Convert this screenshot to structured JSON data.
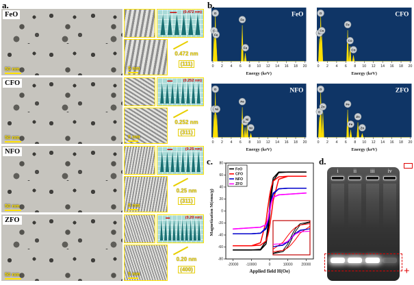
{
  "labels": {
    "a": "a.",
    "b": "b.",
    "c": "c.",
    "d": "d."
  },
  "colors": {
    "scalebar_yellow": "#ffe100",
    "annotation_yellow": "#e8cf00",
    "profile_bg": "#a9dbd8",
    "profile_peak": "#196f72",
    "profile_label_red": "#cc0000",
    "edx_bg": "#0f3566",
    "edx_peak": "#ffe000",
    "gel_marker_red": "#e00000"
  },
  "panel_a": {
    "rows": [
      {
        "name": "FeO",
        "tem_scale": "50 nm",
        "hrtem_scale": "5 nm",
        "spacing": "0.472 nm",
        "plane": "(111)",
        "profile_label": "(0.472 nm)",
        "profile_peaks": 6
      },
      {
        "name": "CFO",
        "tem_scale": "50 nm",
        "hrtem_scale": "5 nm",
        "spacing": "0.252 nm",
        "plane": "(311)",
        "profile_label": "(0.252 nm)",
        "profile_peaks": 8
      },
      {
        "name": "NFO",
        "tem_scale": "50 nm",
        "hrtem_scale": "5 nm",
        "spacing": "0.25 nm",
        "plane": "(311)",
        "profile_label": "(0.25 nm)",
        "profile_peaks": 8
      },
      {
        "name": "ZFO",
        "tem_scale": "50 nm",
        "hrtem_scale": "5 nm",
        "spacing": "0.20 nm",
        "plane": "(400)",
        "profile_label": "(0.20 nm)",
        "profile_peaks": 10
      }
    ]
  },
  "panel_b": {
    "xlabel": "Energy (keV)",
    "xticks": [
      0,
      2,
      4,
      6,
      8,
      10,
      12,
      14,
      16,
      18,
      20
    ],
    "spectra": [
      {
        "name": "FeO",
        "peaks": [
          {
            "e": 0.27,
            "h": 0.5,
            "el": "C"
          },
          {
            "e": 0.53,
            "h": 0.97,
            "el": "O"
          },
          {
            "e": 0.71,
            "h": 0.42,
            "el": "Fe"
          },
          {
            "e": 6.4,
            "h": 0.72,
            "el": "Fe"
          },
          {
            "e": 7.06,
            "h": 0.16,
            "el": "Fe"
          }
        ]
      },
      {
        "name": "CFO",
        "peaks": [
          {
            "e": 0.27,
            "h": 0.45,
            "el": "C"
          },
          {
            "e": 0.53,
            "h": 0.95,
            "el": "O"
          },
          {
            "e": 0.78,
            "h": 0.5,
            "el": "Co"
          },
          {
            "e": 6.4,
            "h": 0.62,
            "el": "Fe"
          },
          {
            "e": 6.93,
            "h": 0.3,
            "el": "Co"
          },
          {
            "e": 7.65,
            "h": 0.12,
            "el": "Co"
          }
        ]
      },
      {
        "name": "NFO",
        "peaks": [
          {
            "e": 0.27,
            "h": 0.45,
            "el": "C"
          },
          {
            "e": 0.53,
            "h": 0.95,
            "el": "O"
          },
          {
            "e": 0.85,
            "h": 0.45,
            "el": "Ni"
          },
          {
            "e": 6.4,
            "h": 0.6,
            "el": "Fe"
          },
          {
            "e": 7.0,
            "h": 0.2,
            "el": "Fe"
          },
          {
            "e": 7.47,
            "h": 0.25,
            "el": "Ni"
          },
          {
            "e": 8.26,
            "h": 0.08,
            "el": "Ni"
          }
        ]
      },
      {
        "name": "ZFO",
        "peaks": [
          {
            "e": 0.27,
            "h": 0.4,
            "el": "C"
          },
          {
            "e": 0.53,
            "h": 0.95,
            "el": "O"
          },
          {
            "e": 1.01,
            "h": 0.5,
            "el": "Zn"
          },
          {
            "e": 6.4,
            "h": 0.55,
            "el": "Fe"
          },
          {
            "e": 7.06,
            "h": 0.15,
            "el": "Fe"
          },
          {
            "e": 8.63,
            "h": 0.3,
            "el": "Zn"
          },
          {
            "e": 9.57,
            "h": 0.08,
            "el": "Zn"
          }
        ]
      }
    ]
  },
  "chart_data": {
    "type": "line",
    "title": "",
    "xlabel": "Applied field H(Oe)",
    "ylabel": "Magnetization M(emu/g)",
    "xlim": [
      -24000,
      24000
    ],
    "ylim": [
      -80,
      80
    ],
    "xticks": [
      -20000,
      -10000,
      0,
      10000,
      20000
    ],
    "yticks": [
      -80,
      -60,
      -40,
      -20,
      0,
      20,
      40,
      60,
      80
    ],
    "legend_position": "upper-left",
    "grid": false,
    "x": [
      -20000,
      -10000,
      -5000,
      -2000,
      -1000,
      -500,
      0,
      500,
      1000,
      2000,
      5000,
      10000,
      20000
    ],
    "series": [
      {
        "name": "FeO",
        "color": "#000000",
        "saturation_emu_g": 65,
        "desc": [
          -65,
          -65,
          -64,
          -50,
          -27,
          -11,
          7,
          24,
          38,
          55,
          65,
          65,
          65
        ],
        "asc": [
          -65,
          -65,
          -65,
          -55,
          -38,
          -24,
          -7,
          11,
          27,
          50,
          64,
          65,
          65
        ]
      },
      {
        "name": "CFO",
        "color": "#ff0000",
        "saturation_emu_g": 58,
        "desc": [
          -58,
          -58,
          -53,
          -18,
          5,
          16,
          26,
          34,
          41,
          50,
          57,
          58,
          58
        ],
        "asc": [
          -58,
          -58,
          -57,
          -50,
          -41,
          -34,
          -26,
          -16,
          -5,
          18,
          53,
          58,
          58
        ]
      },
      {
        "name": "NFO",
        "color": "#0000cc",
        "saturation_emu_g": 38,
        "desc": [
          -38,
          -38,
          -37,
          -28,
          -16,
          -7,
          2,
          11,
          19,
          30,
          37,
          38,
          38
        ],
        "asc": [
          -38,
          -38,
          -37,
          -30,
          -19,
          -11,
          -2,
          7,
          16,
          28,
          37,
          38,
          38
        ]
      },
      {
        "name": "ZFO",
        "color": "#ff00ff",
        "saturation_emu_g": 30,
        "desc": [
          -30,
          -28,
          -27,
          -23,
          -15,
          -8,
          0,
          8,
          15,
          23,
          27,
          28,
          30
        ],
        "asc": [
          -30,
          -28,
          -27,
          -23,
          -15,
          -8,
          0,
          8,
          15,
          23,
          27,
          28,
          30
        ]
      }
    ],
    "inset": {
      "xlim": [
        -4000,
        4000
      ],
      "ylim": [
        -62,
        62
      ],
      "border_color": "#c00000"
    }
  },
  "panel_d": {
    "lanes": [
      "i",
      "ii",
      "iii",
      "iv"
    ],
    "band_intensity": [
      1,
      1,
      1,
      0.28
    ],
    "plus_label": "+"
  }
}
